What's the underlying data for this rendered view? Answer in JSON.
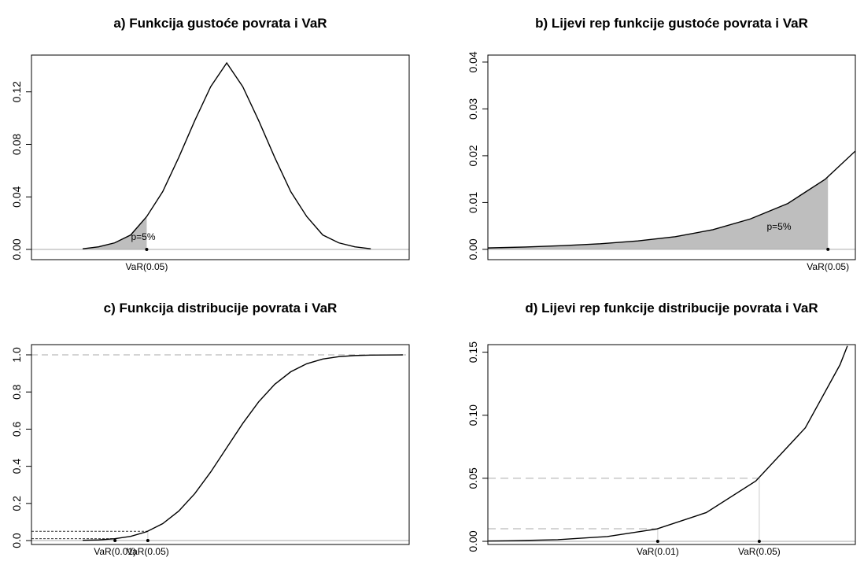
{
  "chart_data": [
    {
      "type": "density",
      "title": "a) Funkcija gustoće povrata i VaR",
      "x": [
        -9,
        -8,
        -7,
        -6,
        -5,
        -4,
        -3,
        -2,
        -1,
        0,
        1,
        2,
        3,
        4,
        5,
        6,
        7,
        8,
        9
      ],
      "values": [
        0.0005,
        0.002,
        0.005,
        0.011,
        0.025,
        0.044,
        0.07,
        0.098,
        0.124,
        0.142,
        0.124,
        0.098,
        0.07,
        0.044,
        0.025,
        0.011,
        0.005,
        0.002,
        0.0005
      ],
      "xlim": [
        -12.2,
        11.4
      ],
      "ylim": [
        -0.0078,
        0.148
      ],
      "yticks": [
        {
          "value": 0,
          "label": "0.00"
        },
        0.04,
        0.08,
        0.12
      ],
      "hlines": [
        0
      ],
      "markers": [
        {
          "label": "VaR(0.05)",
          "x": -5
        }
      ],
      "area_label": "p=5%"
    },
    {
      "type": "density",
      "title": "b) Lijevi rep funkcije gustoće povrata i VaR",
      "x": [
        -14,
        -13,
        -12,
        -11,
        -10,
        -9,
        -8,
        -7,
        -6,
        -5,
        -4.2
      ],
      "values": [
        0.0003,
        0.0005,
        0.0008,
        0.0012,
        0.0018,
        0.0027,
        0.0042,
        0.0065,
        0.0098,
        0.015,
        0.021
      ],
      "xlim": [
        -14,
        -4.2
      ],
      "ylim": [
        -0.0022,
        0.0415
      ],
      "yticks": [
        {
          "value": 0,
          "label": "0.00"
        },
        0.01,
        0.02,
        0.03,
        0.04
      ],
      "hlines": [
        0
      ],
      "markers": [
        {
          "label": "VaR(0.05)",
          "x": -4.93
        }
      ],
      "area_label": "p=5%"
    },
    {
      "type": "cdf",
      "title": "c) Funkcija distribucije povrata i VaR",
      "x": [
        -9,
        -8,
        -7,
        -6,
        -5,
        -4,
        -3,
        -2,
        -1,
        0,
        1,
        2,
        3,
        4,
        5,
        6,
        7,
        8,
        9,
        11
      ],
      "values": [
        0.0013,
        0.0038,
        0.0098,
        0.0228,
        0.0478,
        0.0912,
        0.1587,
        0.2525,
        0.3694,
        0.5,
        0.6306,
        0.7475,
        0.8413,
        0.9088,
        0.9522,
        0.9772,
        0.9902,
        0.9962,
        0.9987,
        0.9999
      ],
      "xlim": [
        -12.2,
        11.4
      ],
      "ylim": [
        -0.021,
        1.055
      ],
      "yticks": [
        {
          "value": 0,
          "label": "0.0"
        },
        0.2,
        0.4,
        0.6,
        0.8,
        {
          "value": 1,
          "label": "1.0"
        }
      ],
      "hlines": [
        0,
        1
      ],
      "markers": [
        {
          "label": "VaR(0.01)",
          "x": -6.98,
          "y": 0.01
        },
        {
          "label": "VaR(0.05)",
          "x": -4.93,
          "y": 0.05
        }
      ]
    },
    {
      "type": "cdf",
      "title": "d) Lijevi rep funkcije distribucije povrata i VaR",
      "x": [
        -10.4,
        -10,
        -9,
        -8,
        -7,
        -6,
        -5,
        -4,
        -3.3,
        -3.15
      ],
      "values": [
        0.0003,
        0.0004,
        0.0013,
        0.0038,
        0.0098,
        0.0228,
        0.0478,
        0.09,
        0.14,
        0.155
      ],
      "xlim": [
        -10.41,
        -2.99
      ],
      "ylim": [
        -0.0025,
        0.156
      ],
      "yticks": [
        {
          "value": 0,
          "label": "0.00"
        },
        0.05,
        {
          "value": 0.1,
          "label": "0.10"
        },
        0.15
      ],
      "hlines": [
        0
      ],
      "markers": [
        {
          "label": "VaR(0.01)",
          "x": -6.98,
          "y": 0.01
        },
        {
          "label": "VaR(0.05)",
          "x": -4.93,
          "y": 0.05
        }
      ]
    }
  ]
}
